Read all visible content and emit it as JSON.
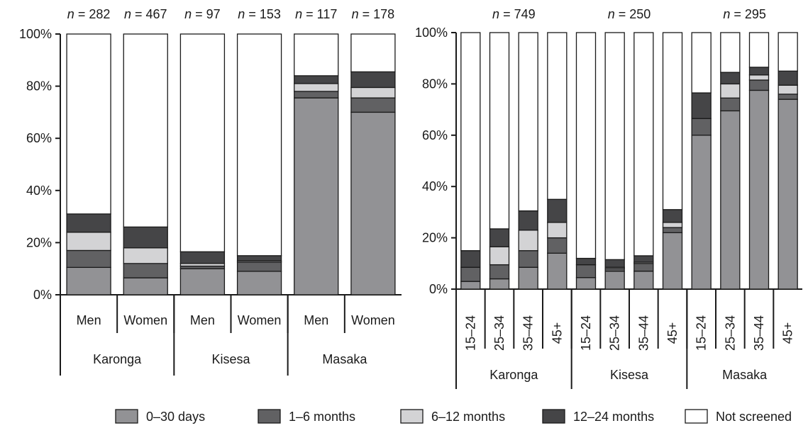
{
  "legend": [
    {
      "name": "0–30 days",
      "color": "#929295"
    },
    {
      "name": "1–6 months",
      "color": "#616163"
    },
    {
      "name": "6–12 months",
      "color": "#d3d3d5"
    },
    {
      "name": "12–24 months",
      "color": "#454547"
    },
    {
      "name": "Not screened",
      "color": "#ffffff"
    }
  ],
  "chart_data": [
    {
      "type": "bar",
      "stacked": true,
      "ylim": [
        0,
        100
      ],
      "yticks": [
        "0%",
        "20%",
        "40%",
        "60%",
        "80%",
        "100%"
      ],
      "categories": [
        "Men",
        "Women",
        "Men",
        "Women",
        "Men",
        "Women"
      ],
      "groups": [
        {
          "label": "Karonga",
          "size": 2
        },
        {
          "label": "Kisesa",
          "size": 2
        },
        {
          "label": "Masaka",
          "size": 2
        }
      ],
      "n_labels": [
        "n = 282",
        "n = 467",
        "n = 97",
        "n = 153",
        "n = 117",
        "n = 178"
      ],
      "series": [
        {
          "name": "0–30 days",
          "values": [
            10.5,
            6.5,
            10,
            9,
            75.5,
            70
          ]
        },
        {
          "name": "1–6 months",
          "values": [
            6.5,
            5.5,
            1,
            3.5,
            2.5,
            5.5
          ]
        },
        {
          "name": "6–12 months",
          "values": [
            7,
            6,
            1,
            0.5,
            3,
            4
          ]
        },
        {
          "name": "12–24 months",
          "values": [
            7,
            8,
            4.5,
            2,
            3,
            6
          ]
        },
        {
          "name": "Not screened",
          "values": [
            69,
            74,
            83.5,
            85,
            16,
            14.5
          ]
        }
      ]
    },
    {
      "type": "bar",
      "stacked": true,
      "ylim": [
        0,
        100
      ],
      "yticks": [
        "0%",
        "20%",
        "40%",
        "60%",
        "80%",
        "100%"
      ],
      "categories": [
        "15–24",
        "25–34",
        "35–44",
        "45+",
        "15–24",
        "25–34",
        "35–44",
        "45+",
        "15–24",
        "25–34",
        "35–44",
        "45+"
      ],
      "groups": [
        {
          "label": "Karonga",
          "size": 4
        },
        {
          "label": "Kisesa",
          "size": 4
        },
        {
          "label": "Masaka",
          "size": 4
        }
      ],
      "n_labels": [
        "n = 749",
        "n = 250",
        "n = 295"
      ],
      "series": [
        {
          "name": "0–30 days",
          "values": [
            3,
            4,
            8.5,
            14,
            4.5,
            7,
            7,
            22,
            60,
            69.5,
            77.5,
            74
          ]
        },
        {
          "name": "1–6 months",
          "values": [
            5.5,
            5.5,
            6.5,
            6,
            5,
            1,
            3,
            2,
            6.5,
            5,
            4,
            2
          ]
        },
        {
          "name": "6–12 months",
          "values": [
            0,
            7,
            8,
            6,
            0,
            0.5,
            0.5,
            2,
            0,
            5.5,
            2,
            3.5
          ]
        },
        {
          "name": "12–24 months",
          "values": [
            6.5,
            7,
            7.5,
            9,
            2.5,
            3,
            2.5,
            5,
            10,
            4.5,
            3,
            5.5
          ]
        },
        {
          "name": "Not screened",
          "values": [
            85,
            76.5,
            69.5,
            65,
            88,
            88.5,
            87,
            69,
            23.5,
            15.5,
            13.5,
            15
          ]
        }
      ]
    }
  ]
}
